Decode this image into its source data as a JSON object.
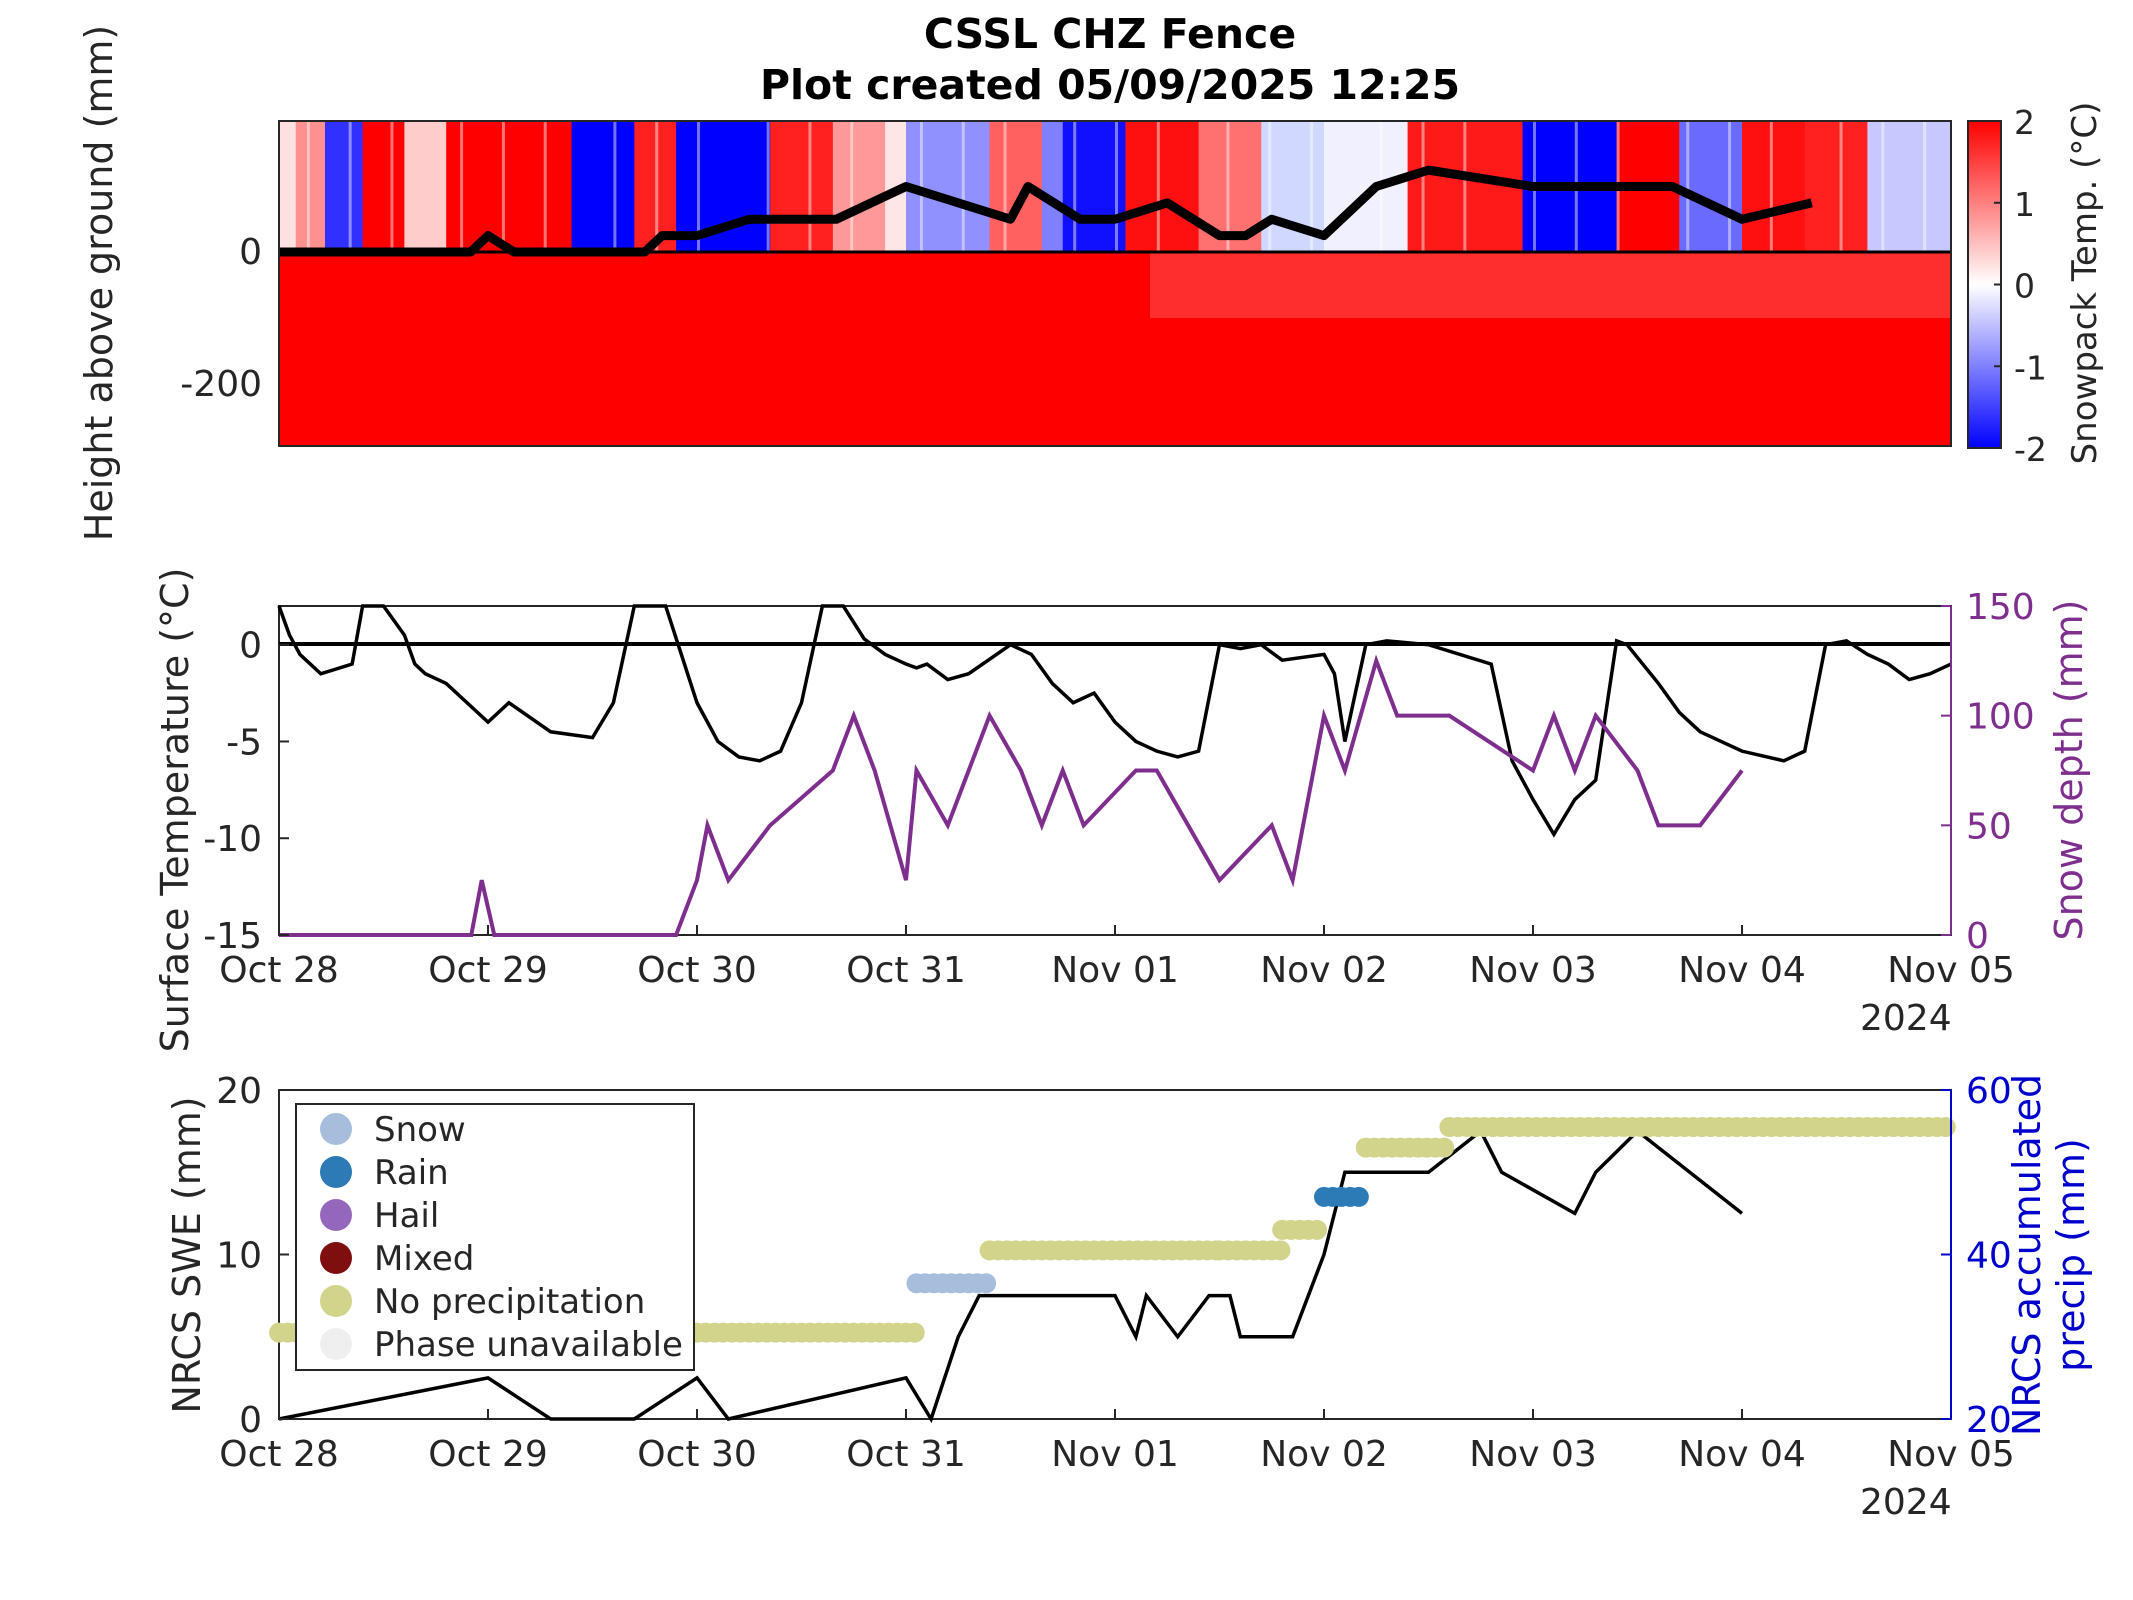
{
  "figure": {
    "title_line1": "CSSL CHZ Fence",
    "title_line2": "Plot created 05/09/2025 12:25"
  },
  "colors": {
    "frozen": "#0000ff",
    "thawed": "#ff0000",
    "snow_depth": "#7e2f8e",
    "precip": "#0000cc",
    "snow": "#a6bddb",
    "rain": "#2c7bb6",
    "hail": "#9467bd",
    "mixed": "#7f0f0f",
    "no_precip": "#d2d48c",
    "unavailable": "#efefef"
  },
  "chart_data": [
    {
      "type": "heatmap",
      "ylabel": "Height above ground (mm)",
      "yticks": [
        "0",
        "-200"
      ],
      "ylim": [
        -300,
        200
      ],
      "colorbar": {
        "label": "Snowpack Temp. (°C)",
        "ticks": [
          "2",
          "1",
          "0",
          "-1",
          "-2"
        ],
        "range": [
          -2,
          2
        ],
        "colormap": "blue-white-red"
      },
      "above_ground_temperature_by_day": [
        {
          "day": "Oct 28",
          "pattern": "mixed, mostly white-red, blue near Oct 28 12:00"
        },
        {
          "day": "Oct 29",
          "pattern": "red morning, blue afternoon"
        },
        {
          "day": "Oct 30",
          "pattern": "blue early, red afternoon"
        },
        {
          "day": "Oct 31",
          "pattern": "pink/white, blue midday, red evening"
        },
        {
          "day": "Nov 01",
          "pattern": "blue morning, red afternoon"
        },
        {
          "day": "Nov 02",
          "pattern": "white/light blue, red evening"
        },
        {
          "day": "Nov 03",
          "pattern": "blue morning, red midday, blue evening"
        },
        {
          "day": "Nov 04",
          "pattern": "red morning, light blue/white afternoon"
        }
      ],
      "below_ground": "red (above 2 °C) throughout; slightly lighter near surface after Nov 01",
      "snow_height_line": {
        "x": [
          "Oct 28 00:00",
          "Oct 28 22:00",
          "Oct 29 00:00",
          "Oct 29 03:00",
          "Oct 29 04:00",
          "Oct 29 18:00",
          "Oct 29 20:00",
          "Oct 30 00:00",
          "Oct 30 06:00",
          "Oct 30 09:00",
          "Oct 30 16:00",
          "Oct 30 20:00",
          "Oct 31 00:00",
          "Oct 31 12:00",
          "Oct 31 14:00",
          "Oct 31 20:00",
          "Nov 01 00:00",
          "Nov 01 06:00",
          "Nov 01 12:00",
          "Nov 01 15:00",
          "Nov 01 18:00",
          "Nov 02 00:00",
          "Nov 02 06:00",
          "Nov 02 12:00",
          "Nov 03 00:00",
          "Nov 03 12:00",
          "Nov 03 16:00",
          "Nov 04 00:00",
          "Nov 04 08:00"
        ],
        "y": [
          0,
          0,
          25,
          0,
          0,
          0,
          25,
          25,
          50,
          50,
          50,
          75,
          100,
          50,
          100,
          50,
          50,
          75,
          25,
          25,
          50,
          25,
          100,
          125,
          100,
          100,
          100,
          50,
          75
        ]
      }
    },
    {
      "type": "line",
      "ylabel": "Surface Temperature (°C)",
      "y2label": "Snow depth (mm)",
      "x_ticks": [
        "Oct 28",
        "Oct 29",
        "Oct 30",
        "Oct 31",
        "Nov 01",
        "Nov 02",
        "Nov 03",
        "Nov 04",
        "Nov 05"
      ],
      "x_year": "2024",
      "ylim": [
        -15,
        2
      ],
      "yticks": [
        "0",
        "-5",
        "-10",
        "-15"
      ],
      "y2lim": [
        0,
        150
      ],
      "y2ticks": [
        "150",
        "100",
        "50",
        "0"
      ],
      "series": [
        {
          "name": "Surface Temperature",
          "x_days": [
            0.0,
            0.05,
            0.1,
            0.2,
            0.35,
            0.4,
            0.5,
            0.6,
            0.65,
            0.7,
            0.8,
            1.0,
            1.1,
            1.3,
            1.5,
            1.6,
            1.7,
            1.85,
            2.0,
            2.1,
            2.2,
            2.3,
            2.4,
            2.5,
            2.6,
            2.7,
            2.8,
            2.9,
            3.0,
            3.05,
            3.1,
            3.2,
            3.3,
            3.5,
            3.6,
            3.7,
            3.8,
            3.9,
            4.0,
            4.1,
            4.2,
            4.3,
            4.4,
            4.5,
            4.6,
            4.7,
            4.8,
            5.0,
            5.05,
            5.1,
            5.2,
            5.3,
            5.5,
            5.8,
            5.9,
            6.0,
            6.1,
            6.2,
            6.3,
            6.4,
            6.45,
            6.6,
            6.7,
            6.8,
            7.0,
            7.2,
            7.3,
            7.4,
            7.5,
            7.6,
            7.7,
            7.8,
            7.9,
            8.0
          ],
          "y": [
            2,
            0.5,
            -0.5,
            -1.5,
            -1.0,
            2,
            2,
            0.5,
            -1.0,
            -1.5,
            -2.0,
            -4.0,
            -3.0,
            -4.5,
            -4.8,
            -3.0,
            2,
            2,
            -3.0,
            -5.0,
            -5.8,
            -6.0,
            -5.5,
            -3.0,
            2,
            2,
            0.3,
            -0.5,
            -1.0,
            -1.2,
            -1.0,
            -1.8,
            -1.5,
            0.0,
            -0.5,
            -2.0,
            -3.0,
            -2.5,
            -4.0,
            -5.0,
            -5.5,
            -5.8,
            -5.5,
            0.0,
            -0.2,
            0.0,
            -0.8,
            -0.5,
            -1.5,
            -5.0,
            0.0,
            0.2,
            0.0,
            -1.0,
            -6.0,
            -8.0,
            -9.8,
            -8.0,
            -7.0,
            0.2,
            0.0,
            -2.0,
            -3.5,
            -4.5,
            -5.5,
            -6.0,
            -5.5,
            0.0,
            0.2,
            -0.5,
            -1.0,
            -1.8,
            -1.5,
            -1.0
          ]
        },
        {
          "name": "Snow depth",
          "x_days": [
            0.0,
            0.92,
            0.97,
            1.03,
            1.9,
            2.0,
            2.05,
            2.15,
            2.35,
            2.65,
            2.75,
            2.85,
            3.0,
            3.05,
            3.2,
            3.3,
            3.4,
            3.55,
            3.65,
            3.75,
            3.85,
            4.1,
            4.2,
            4.5,
            4.75,
            4.85,
            5.0,
            5.1,
            5.25,
            5.35,
            5.5,
            5.6,
            6.0,
            6.1,
            6.2,
            6.3,
            6.5,
            6.6,
            6.8,
            7.0
          ],
          "y": [
            0,
            0,
            25,
            0,
            0,
            25,
            50,
            25,
            50,
            75,
            100,
            75,
            25,
            75,
            50,
            75,
            100,
            75,
            50,
            75,
            50,
            75,
            75,
            25,
            50,
            25,
            100,
            75,
            125,
            100,
            100,
            100,
            75,
            100,
            75,
            100,
            75,
            50,
            50,
            75
          ]
        }
      ]
    },
    {
      "type": "scatter",
      "ylabel": "NRCS SWE (mm)",
      "y2label_line1": "NRCS accumulated",
      "y2label_line2": "precip (mm)",
      "x_ticks": [
        "Oct 28",
        "Oct 29",
        "Oct 30",
        "Oct 31",
        "Nov 01",
        "Nov 02",
        "Nov 03",
        "Nov 04",
        "Nov 05"
      ],
      "x_year": "2024",
      "ylim": [
        0,
        20
      ],
      "yticks": [
        "20",
        "10",
        "0"
      ],
      "y2lim": [
        20,
        60
      ],
      "y2ticks": [
        "60",
        "40",
        "20"
      ],
      "legend": [
        "Snow",
        "Rain",
        "Hail",
        "Mixed",
        "No precipitation",
        "Phase unavailable"
      ],
      "legend_position": "top-left",
      "series": [
        {
          "name": "SWE",
          "x_days": [
            0.0,
            1.0,
            1.3,
            1.7,
            2.0,
            2.15,
            3.0,
            3.12,
            3.25,
            3.35,
            3.45,
            4.0,
            4.1,
            4.15,
            4.3,
            4.45,
            4.55,
            4.6,
            4.85,
            5.0,
            5.1,
            5.5,
            5.75,
            5.85,
            6.2,
            6.3,
            6.5,
            6.75,
            7.0
          ],
          "y": [
            0,
            2.5,
            0,
            0,
            2.5,
            0,
            2.5,
            0,
            5,
            7.5,
            7.5,
            7.5,
            5,
            7.5,
            5,
            7.5,
            7.5,
            5,
            5,
            10,
            15,
            15,
            17.5,
            15,
            12.5,
            15,
            17.5,
            15,
            12.5
          ]
        },
        {
          "name": "Accumulated precip phases",
          "segments": [
            {
              "x_start_days": 0.0,
              "x_end_days": 3.05,
              "precip": 30.5,
              "phase": "No precipitation"
            },
            {
              "x_start_days": 3.05,
              "x_end_days": 3.4,
              "precip": 36.5,
              "phase": "Snow"
            },
            {
              "x_start_days": 3.4,
              "x_end_days": 4.5,
              "precip": 40.5,
              "phase": "No precipitation"
            },
            {
              "x_start_days": 4.5,
              "x_end_days": 4.8,
              "precip": 40.5,
              "phase": "No precipitation"
            },
            {
              "x_start_days": 4.8,
              "x_end_days": 5.0,
              "precip": 43,
              "phase": "No precipitation"
            },
            {
              "x_start_days": 5.0,
              "x_end_days": 5.2,
              "precip": 47,
              "phase": "Rain"
            },
            {
              "x_start_days": 5.2,
              "x_end_days": 5.6,
              "precip": 53,
              "phase": "No precipitation"
            },
            {
              "x_start_days": 5.6,
              "x_end_days": 8.0,
              "precip": 55.5,
              "phase": "No precipitation"
            }
          ]
        }
      ]
    }
  ]
}
